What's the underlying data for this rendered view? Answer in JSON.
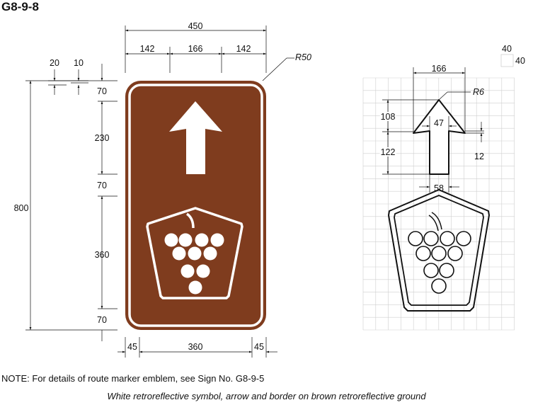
{
  "sign_code": "G8-9-8",
  "grid_note": {
    "width": "40",
    "height": "40"
  },
  "dimensions": {
    "overall_width": "450",
    "width_left": "142",
    "width_mid": "166",
    "width_right": "142",
    "corner_radius": "R50",
    "border_offset": "20",
    "border_width": "10",
    "height_total": "800",
    "h_top": "70",
    "h_arrow": "230",
    "h_gap": "70",
    "h_emblem": "360",
    "h_bottom": "70",
    "bottom_left": "45",
    "bottom_mid": "360",
    "bottom_right": "45"
  },
  "arrow_detail": {
    "width": "166",
    "tip_radius": "R6",
    "head_height": "108",
    "head_notch": "47",
    "shaft_height": "122",
    "notch_depth": "12",
    "shaft_width": "58"
  },
  "colors": {
    "ground": "#7f3c1e",
    "symbol": "#ffffff",
    "grid": "#cfcfcf"
  },
  "note": "NOTE: For details of route marker emblem, see Sign No. G8-9-5",
  "caption": "White retroreflective symbol, arrow and border on brown retroreflective ground"
}
